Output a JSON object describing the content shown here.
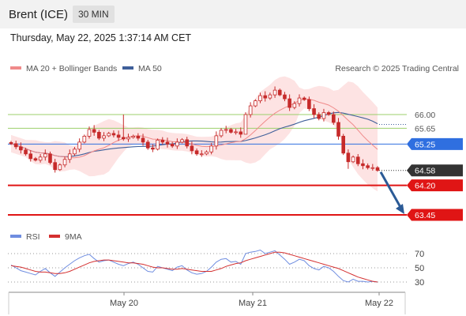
{
  "header": {
    "title": "Brent (ICE)",
    "timeframe": "30 MIN"
  },
  "timestamp": "Thursday, May 22, 2025 1:37:14 AM CET",
  "legend": {
    "ma20_label": "MA 20 + Bollinger Bands",
    "ma50_label": "MA 50",
    "copyright": "Research © 2025 Trading Central"
  },
  "rsi_legend": {
    "rsi_label": "RSI",
    "ma_label": "9MA"
  },
  "colors": {
    "ma20": "#f08a8a",
    "ma50": "#3f5f9a",
    "band_fill": "#fde3e3",
    "support": "#e01515",
    "current": "#2f6fe0",
    "resistance_lines": "#9ccf6b",
    "candle": "#c62a2a",
    "rsi": "#6f8de0",
    "rsi_ma": "#d43030",
    "arrow": "#2b5a96",
    "price_tag": "#333333"
  },
  "chart_data": [
    {
      "type": "candlestick",
      "title": "Brent (ICE)",
      "timeframe": "30 MIN",
      "x_ticks": [
        "May 20",
        "May 21",
        "May 22"
      ],
      "y_tick_labels": [
        "66.00",
        "65.65",
        "65.25",
        "64.58",
        "64.20",
        "63.45"
      ],
      "levels": [
        {
          "value": 66.0,
          "label": "66.00",
          "kind": "resistance"
        },
        {
          "value": 65.65,
          "label": "65.65",
          "kind": "resistance"
        },
        {
          "value": 65.25,
          "label": "65.25",
          "kind": "pivot"
        },
        {
          "value": 64.2,
          "label": "64.20",
          "kind": "support"
        },
        {
          "value": 63.45,
          "label": "63.45",
          "kind": "support"
        }
      ],
      "last_price": {
        "value": 64.58,
        "label": "64.58"
      },
      "projection": {
        "from": 64.58,
        "to": 63.45
      },
      "closes": [
        65.26,
        65.18,
        65.1,
        65.0,
        64.88,
        64.84,
        64.92,
        65.0,
        64.78,
        64.6,
        64.72,
        64.86,
        65.0,
        65.12,
        65.3,
        65.45,
        65.62,
        65.55,
        65.4,
        65.46,
        65.52,
        65.48,
        65.42,
        65.38,
        65.42,
        65.45,
        65.4,
        65.3,
        65.15,
        65.12,
        65.35,
        65.3,
        65.25,
        65.2,
        65.3,
        65.36,
        65.2,
        65.08,
        65.0,
        65.0,
        65.05,
        65.2,
        65.46,
        65.6,
        65.62,
        65.55,
        65.56,
        65.5,
        66.0,
        66.22,
        66.35,
        66.48,
        66.42,
        66.5,
        66.62,
        66.5,
        66.4,
        66.18,
        66.28,
        66.42,
        66.38,
        66.15,
        66.0,
        65.9,
        66.05,
        66.0,
        65.8,
        65.45,
        65.02,
        64.8,
        64.92,
        64.75,
        64.7,
        64.65,
        64.65,
        64.58
      ],
      "bollinger": {
        "upper_peak": 66.9,
        "lower_trough": 64.2
      }
    },
    {
      "type": "line",
      "name": "RSI",
      "series": [
        {
          "name": "RSI",
          "values": [
            54,
            50,
            46,
            44,
            42,
            40,
            45,
            49,
            43,
            38,
            44,
            50,
            55,
            60,
            64,
            67,
            69,
            63,
            58,
            60,
            61,
            58,
            55,
            53,
            56,
            58,
            55,
            50,
            45,
            44,
            52,
            50,
            48,
            46,
            51,
            53,
            47,
            43,
            41,
            42,
            45,
            51,
            58,
            62,
            63,
            58,
            59,
            55,
            70,
            72,
            73,
            75,
            70,
            72,
            74,
            68,
            62,
            55,
            58,
            62,
            60,
            53,
            49,
            47,
            52,
            50,
            45,
            38,
            32,
            30,
            34,
            31,
            31,
            30,
            31,
            30
          ]
        },
        {
          "name": "9MA",
          "values": [
            53,
            52,
            51,
            49,
            47,
            45,
            44,
            44,
            43,
            42,
            42,
            43,
            45,
            48,
            51,
            54,
            57,
            59,
            60,
            61,
            61,
            60,
            59,
            58,
            57,
            57,
            56,
            55,
            53,
            51,
            50,
            50,
            49,
            48,
            48,
            49,
            48,
            47,
            46,
            45,
            45,
            45,
            47,
            49,
            52,
            54,
            56,
            57,
            60,
            62,
            64,
            66,
            68,
            70,
            72,
            72,
            71,
            69,
            67,
            65,
            63,
            61,
            59,
            57,
            55,
            53,
            51,
            49,
            46,
            43,
            40,
            37,
            35,
            33,
            31,
            30
          ]
        }
      ],
      "y_ticks": [
        "70",
        "50",
        "30"
      ],
      "ylim": [
        20,
        80
      ]
    }
  ]
}
